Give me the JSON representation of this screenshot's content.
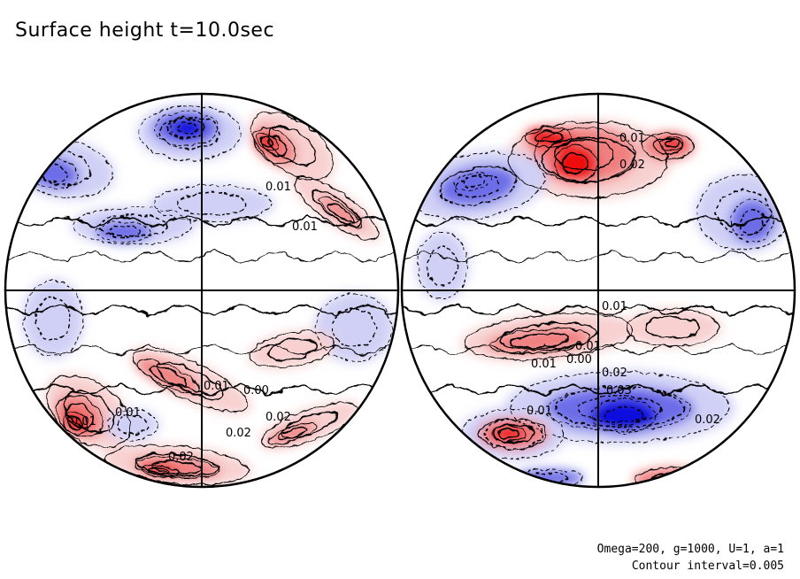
{
  "title": "Surface height t=10.0sec",
  "footer": {
    "params": "Omega=200, g=1000, U=1, a=1",
    "interval": "Contour interval=0.005"
  },
  "colors": {
    "positive_strong": "#ee1111",
    "positive_mid": "#f08080",
    "positive_weak": "#f8d0d0",
    "negative_strong": "#1010dd",
    "negative_mid": "#6d6de8",
    "negative_weak": "#d0d0f6",
    "neutral": "#ffffff",
    "contour": "#000000"
  },
  "hemispheres": [
    {
      "name": "left",
      "contour_labels": [
        "0.01",
        "0.01",
        "0.01",
        "0.00",
        "0.02",
        "0.02",
        "0.02",
        "0.01",
        "0.01"
      ]
    },
    {
      "name": "right",
      "contour_labels": [
        "0.01",
        "0.02",
        "0.01",
        "0.01",
        "0.01",
        "0.00",
        "0.02",
        "0.03",
        "0.01",
        "0.02"
      ]
    }
  ]
}
